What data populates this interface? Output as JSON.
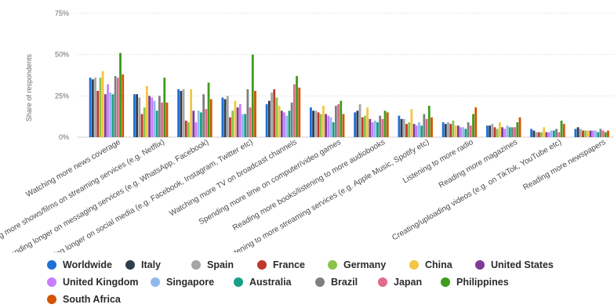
{
  "chart_data": {
    "type": "bar",
    "ylabel": "Share of respondents",
    "ylim": [
      0,
      75
    ],
    "yticks": [
      "0%",
      "25%",
      "50%",
      "75%"
    ],
    "ytick_values": [
      0,
      25,
      50,
      75
    ],
    "grid": true,
    "legend_position": "bottom",
    "categories": [
      "Watching more news coverage",
      "Watching more shows/films on streaming services (e.g. Netflix)",
      "Spending longer on messaging services (e.g. WhatsApp, Facebook)",
      "Spending longer on social media (e.g. Facebook, Instagram, Twitter etc)",
      "Watching more TV on broadcast channels",
      "Spending more time on computer/video games",
      "Reading more books/listening to more audiobooks",
      "Listening to more streaming services (e.g. Apple Music, Spotify etc)",
      "Listening to more radio",
      "Reading more magazines",
      "Creating/uploading videos (e.g. on TikTok, YouTube etc)",
      "Reading more newspapers"
    ],
    "series": [
      {
        "name": "Worldwide",
        "color": "#1f6fd6",
        "values": [
          36,
          26,
          29,
          24,
          20,
          18,
          15,
          13,
          9,
          7,
          5,
          5
        ]
      },
      {
        "name": "Italy",
        "color": "#2d3e50",
        "values": [
          35,
          26,
          28,
          23,
          22,
          16,
          16,
          11,
          8,
          7,
          4,
          6
        ]
      },
      {
        "name": "Spain",
        "color": "#a5a5a5",
        "values": [
          36,
          24,
          29,
          25,
          27,
          16,
          20,
          11,
          9,
          8,
          3,
          5
        ]
      },
      {
        "name": "France",
        "color": "#c0392b",
        "values": [
          28,
          14,
          10,
          12,
          29,
          15,
          12,
          8,
          8,
          6,
          3,
          4
        ]
      },
      {
        "name": "Germany",
        "color": "#8bc34a",
        "values": [
          36,
          18,
          9,
          16,
          24,
          14,
          13,
          9,
          10,
          5,
          3,
          4
        ]
      },
      {
        "name": "China",
        "color": "#f4c542",
        "values": [
          40,
          31,
          29,
          22,
          19,
          19,
          18,
          17,
          7,
          9,
          6,
          4
        ]
      },
      {
        "name": "United States",
        "color": "#7d3c98",
        "values": [
          26,
          25,
          16,
          18,
          16,
          14,
          11,
          8,
          7,
          6,
          3,
          4
        ]
      },
      {
        "name": "United Kingdom",
        "color": "#c77dff",
        "values": [
          32,
          24,
          9,
          20,
          15,
          13,
          9,
          7,
          6,
          5,
          3,
          4
        ]
      },
      {
        "name": "Singapore",
        "color": "#8fb8ee",
        "values": [
          27,
          22,
          16,
          14,
          13,
          12,
          10,
          9,
          6,
          7,
          4,
          4
        ]
      },
      {
        "name": "Australia",
        "color": "#16a085",
        "values": [
          26,
          16,
          15,
          14,
          16,
          9,
          9,
          7,
          5,
          6,
          4,
          3
        ]
      },
      {
        "name": "Brazil",
        "color": "#7f7f7f",
        "values": [
          37,
          25,
          26,
          29,
          21,
          19,
          13,
          14,
          9,
          6,
          5,
          5
        ]
      },
      {
        "name": "Japan",
        "color": "#e06b8b",
        "values": [
          36,
          21,
          17,
          18,
          32,
          20,
          11,
          11,
          7,
          6,
          3,
          4
        ]
      },
      {
        "name": "Philippines",
        "color": "#3e9b1f",
        "values": [
          51,
          36,
          33,
          50,
          37,
          22,
          16,
          19,
          14,
          9,
          10,
          3
        ]
      },
      {
        "name": "South Africa",
        "color": "#d35400",
        "values": [
          38,
          21,
          23,
          28,
          30,
          14,
          15,
          12,
          18,
          12,
          8,
          4
        ]
      }
    ]
  }
}
